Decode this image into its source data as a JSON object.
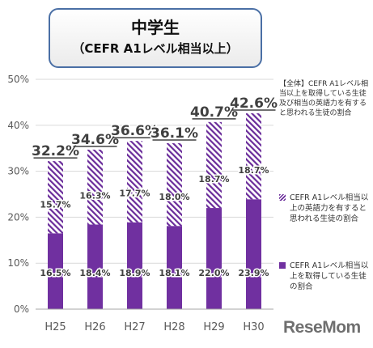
{
  "title": {
    "main": "中学生",
    "sub": "（CEFR A1レベル相当以上）"
  },
  "legend": {
    "header": "【全体】CEFR A1レベル相当以上を取得している生徒及び相当の英語力を有すると思われる生徒の割合",
    "items": [
      {
        "label": "CEFR A1レベル相当以上の英語力を有すると思われる生徒の割合",
        "pattern": "hatched"
      },
      {
        "label": "CEFR A1レベル相当以上を取得している生徒の割合",
        "pattern": "solid"
      }
    ]
  },
  "brand": "ReseMom",
  "colors": {
    "solid": "#7030a0",
    "hatch": "#6a2c9a",
    "grid": "#d9d9d9",
    "axis": "#595959"
  },
  "chart_data": {
    "type": "bar",
    "stacked": true,
    "categories": [
      "H25",
      "H26",
      "H27",
      "H28",
      "H29",
      "H30"
    ],
    "series": [
      {
        "name": "CEFR A1レベル相当以上を取得している生徒の割合",
        "values": [
          16.5,
          18.4,
          18.9,
          18.1,
          22.0,
          23.9
        ],
        "labels": [
          "16.5%",
          "18.4%",
          "18.9%",
          "18.1%",
          "22.0%",
          "23.9%"
        ]
      },
      {
        "name": "CEFR A1レベル相当以上の英語力を有すると思われる生徒の割合",
        "values": [
          15.7,
          16.3,
          17.7,
          18.0,
          18.7,
          18.7
        ],
        "labels": [
          "15.7%",
          "16.3%",
          "17.7%",
          "18.0%",
          "18.7%",
          "18.7%"
        ]
      }
    ],
    "totals": [
      32.2,
      34.6,
      36.6,
      36.1,
      40.7,
      42.6
    ],
    "total_labels": [
      "32.2%",
      "34.6%",
      "36.6%",
      "36.1%",
      "40.7%",
      "42.6%"
    ],
    "ylim": [
      0,
      50
    ],
    "yticks": [
      "0%",
      "10%",
      "20%",
      "30%",
      "40%",
      "50%"
    ],
    "grid": true,
    "legend_position": "right"
  }
}
